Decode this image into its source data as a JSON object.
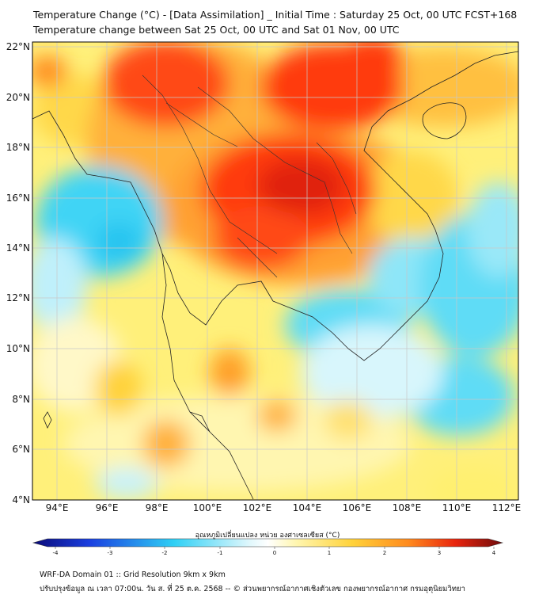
{
  "title": {
    "line1": "Temperature Change (°C) - [Data Assimilation] _ Initial Time : Saturday 25 Oct, 00 UTC FCST+168",
    "line2": "Temperature change between Sat 25 Oct, 00 UTC and Sat 01 Nov, 00 UTC"
  },
  "map": {
    "y_axis": [
      "22°N",
      "20°N",
      "18°N",
      "16°N",
      "14°N",
      "12°N",
      "10°N",
      "8°N",
      "6°N",
      "4°N"
    ],
    "x_axis": [
      "94°E",
      "96°E",
      "98°E",
      "100°E",
      "102°E",
      "104°E",
      "106°E",
      "108°E",
      "110°E",
      "112°E"
    ],
    "lat_range": [
      4,
      22.2
    ],
    "lon_range": [
      93,
      112.5
    ],
    "gridlines": true
  },
  "colorbar": {
    "title": "อุณหภูมิเปลี่ยนแปลง หน่วย องศาเซลเซียส (°C)",
    "ticks": [
      "-4",
      "-3",
      "-2",
      "-1",
      "0",
      "1",
      "2",
      "3",
      "4"
    ],
    "range": [
      -4,
      4
    ],
    "colors": {
      "extreme_low": "#0a0a78",
      "low": "#1a3fe0",
      "mid_low": "#2fd0f5",
      "zero": "#ffffff",
      "mid_high": "#fff07a",
      "high": "#ff8a1e",
      "extreme_high": "#6e0b0b"
    }
  },
  "footer": {
    "line1": "WRF-DA Domain 01 :: Grid Resolution 9km x 9km",
    "line2": "ปรับปรุงข้อมูล ณ เวลา 07:00น. วัน ส. ที่ 25 ต.ค. 2568 -- © ส่วนพยากรณ์อากาศเชิงตัวเลข กองพยากรณ์อากาศ กรมอุตุนิยมวิทยา"
  }
}
